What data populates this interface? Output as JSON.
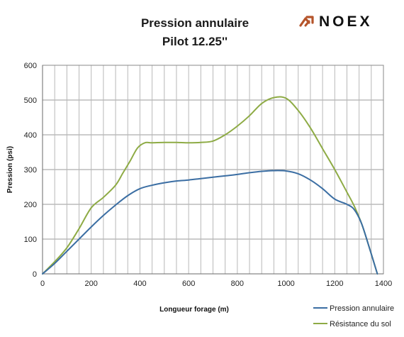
{
  "logo": {
    "text": "NOEX",
    "mark_color": "#b5542a"
  },
  "chart_data": {
    "type": "line",
    "title": "Pression annulaire",
    "subtitle": "Pilot 12.25''",
    "xlabel": "Longueur forage (m)",
    "ylabel": "Pression (psi)",
    "xlim": [
      0,
      1400
    ],
    "ylim": [
      0,
      600
    ],
    "xticks": [
      "0",
      "200",
      "400",
      "600",
      "800",
      "1000",
      "1200",
      "1400"
    ],
    "yticks": [
      "0",
      "100",
      "200",
      "300",
      "400",
      "500",
      "600"
    ],
    "grid": true,
    "legend_position": "bottom-right",
    "series": [
      {
        "name": "Pression annulaire",
        "color": "#3b6ea3",
        "x": [
          0,
          50,
          100,
          150,
          200,
          250,
          300,
          350,
          400,
          450,
          500,
          550,
          600,
          650,
          700,
          750,
          800,
          850,
          900,
          950,
          1000,
          1050,
          1100,
          1150,
          1200,
          1250,
          1280,
          1310,
          1340,
          1375
        ],
        "y": [
          0,
          30,
          65,
          100,
          135,
          168,
          198,
          225,
          245,
          255,
          262,
          267,
          270,
          274,
          278,
          282,
          286,
          291,
          295,
          297,
          296,
          288,
          270,
          245,
          215,
          200,
          185,
          145,
          80,
          0
        ]
      },
      {
        "name": "Résistance du sol",
        "color": "#8eab45",
        "x": [
          0,
          50,
          100,
          150,
          200,
          250,
          300,
          330,
          360,
          390,
          420,
          450,
          500,
          550,
          600,
          650,
          700,
          750,
          800,
          850,
          900,
          950,
          1000,
          1050,
          1100,
          1150,
          1200,
          1250,
          1280,
          1310,
          1340,
          1375
        ],
        "y": [
          0,
          35,
          75,
          130,
          190,
          220,
          255,
          290,
          325,
          362,
          377,
          377,
          378,
          378,
          377,
          378,
          382,
          400,
          425,
          455,
          490,
          507,
          505,
          470,
          420,
          360,
          300,
          235,
          195,
          145,
          80,
          0
        ]
      }
    ]
  }
}
